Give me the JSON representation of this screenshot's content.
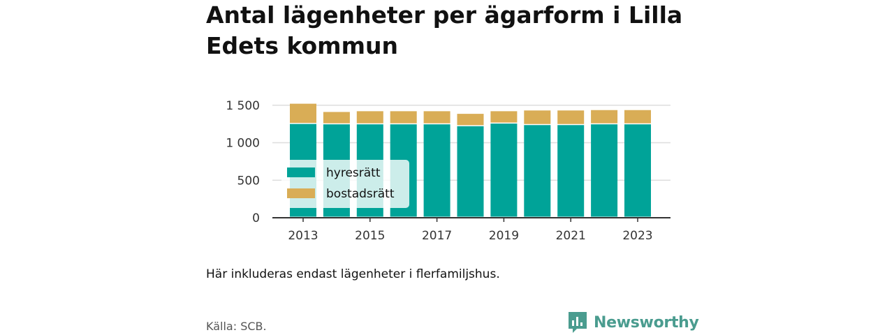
{
  "title": "Antal lägenheter per ägarform i Lilla Edets kommun",
  "note": "Här inkluderas endast lägenheter i flerfamiljshus.",
  "source": "Källa: SCB.",
  "brand": {
    "name": "Newsworthy",
    "icon": "newsworthy-logo-icon"
  },
  "colors": {
    "hyresratt": "#00a398",
    "bostadsratt": "#d9ad56",
    "grid": "#dddddd",
    "axis": "#333333"
  },
  "chart_data": {
    "type": "bar",
    "stacked": true,
    "categories": [
      "2013",
      "2014",
      "2015",
      "2016",
      "2017",
      "2018",
      "2019",
      "2020",
      "2021",
      "2022",
      "2023"
    ],
    "x_tick_labels": [
      "2013",
      "2015",
      "2017",
      "2019",
      "2021",
      "2023"
    ],
    "y_tick_labels": [
      "0",
      "500",
      "1 000",
      "1 500"
    ],
    "y_ticks": [
      0,
      500,
      1000,
      1500
    ],
    "ylim": [
      0,
      1600
    ],
    "grid": true,
    "legend_position": "left",
    "series": [
      {
        "name": "hyresrätt",
        "color": "#00a398",
        "values": [
          1250,
          1245,
          1245,
          1245,
          1245,
          1220,
          1255,
          1235,
          1235,
          1245,
          1245
        ]
      },
      {
        "name": "bostadsrätt",
        "color": "#d9ad56",
        "values": [
          270,
          165,
          175,
          175,
          175,
          165,
          165,
          195,
          195,
          190,
          190
        ]
      }
    ]
  }
}
